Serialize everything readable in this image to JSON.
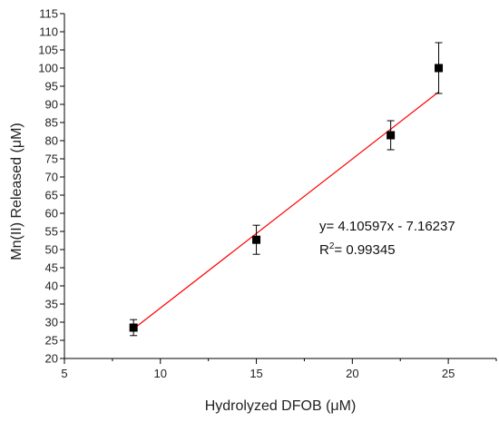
{
  "chart_data": {
    "type": "scatter",
    "title": "",
    "xlabel": "Hydrolyzed DFOB (μM)",
    "ylabel": "Mn(II) Released (μM)",
    "xlim": [
      5,
      27.5
    ],
    "ylim": [
      20,
      115
    ],
    "xticks": [
      5,
      10,
      15,
      20,
      25
    ],
    "yticks": [
      20,
      25,
      30,
      35,
      40,
      45,
      50,
      55,
      60,
      65,
      70,
      75,
      80,
      85,
      90,
      95,
      100,
      105,
      110,
      115
    ],
    "grid": false,
    "series": [
      {
        "points": [
          {
            "x": 8.6,
            "y": 28.5,
            "err": 2.2
          },
          {
            "x": 15.0,
            "y": 52.7,
            "err": 4.0
          },
          {
            "x": 22.0,
            "y": 81.5,
            "err": 4.0
          },
          {
            "x": 24.5,
            "y": 100.0,
            "err": 7.0
          }
        ],
        "color": "#000000",
        "marker": "square"
      }
    ],
    "fit": {
      "slope": 4.10597,
      "intercept": -7.16237,
      "x_range": [
        8.6,
        24.5
      ],
      "color": "#ff0000"
    },
    "annotations": {
      "equation": "y= 4.10597x - 7.16237",
      "r2_prefix": "R",
      "r2_sup": "2",
      "r2_value": "= 0.99345"
    }
  }
}
